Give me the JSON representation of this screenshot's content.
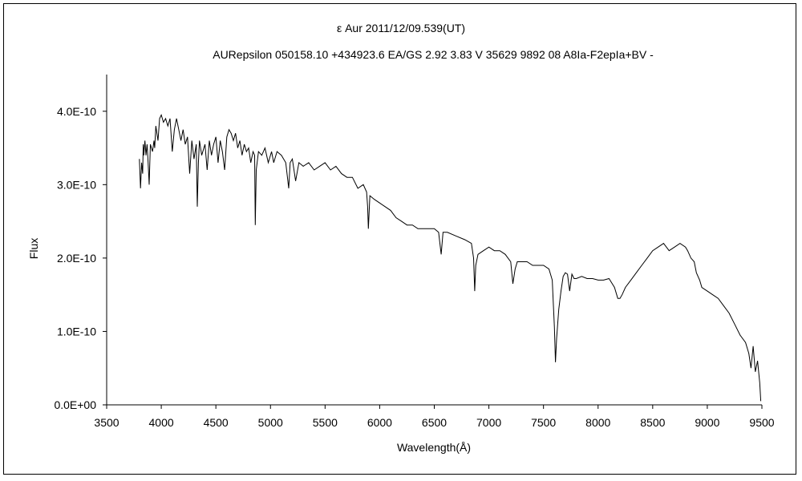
{
  "chart_data": {
    "type": "line",
    "title": "ε  Aur   2011/12/09.539(UT)",
    "subtitle": "AURepsilon 050158.10 +434923.6 EA/GS 2.92 3.83 V 35629 9892 08 A8Ia-F2epIa+BV -",
    "xlabel": "Wavelength(Å)",
    "ylabel": "Flux",
    "xlim": [
      3500,
      9500
    ],
    "ylim": [
      0,
      4.5e-10
    ],
    "xticks": [
      3500,
      4000,
      4500,
      5000,
      5500,
      6000,
      6500,
      7000,
      7500,
      8000,
      8500,
      9000,
      9500
    ],
    "xtick_labels": [
      "3500",
      "4000",
      "4500",
      "5000",
      "5500",
      "6000",
      "6500",
      "7000",
      "7500",
      "8000",
      "8500",
      "9000",
      "9500"
    ],
    "yticks": [
      0,
      1e-10,
      2e-10,
      3e-10,
      4e-10
    ],
    "ytick_labels": [
      "0.0E+00",
      "1.0E-10",
      "2.0E-10",
      "3.0E-10",
      "4.0E-10"
    ],
    "grid": false,
    "legend": "none",
    "line_color": "#000000",
    "series": [
      {
        "x": [
          3800,
          3810,
          3820,
          3830,
          3835,
          3840,
          3850,
          3860,
          3870,
          3880,
          3889,
          3900,
          3920,
          3933,
          3940,
          3950,
          3970,
          3985,
          4000,
          4020,
          4040,
          4060,
          4080,
          4101,
          4120,
          4140,
          4160,
          4180,
          4200,
          4220,
          4240,
          4260,
          4280,
          4300,
          4320,
          4330,
          4340,
          4350,
          4370,
          4400,
          4420,
          4440,
          4460,
          4480,
          4500,
          4520,
          4540,
          4560,
          4580,
          4600,
          4620,
          4640,
          4660,
          4680,
          4700,
          4720,
          4740,
          4760,
          4780,
          4800,
          4820,
          4840,
          4855,
          4861,
          4870,
          4890,
          4920,
          4950,
          4980,
          5010,
          5030,
          5060,
          5100,
          5140,
          5167,
          5180,
          5200,
          5230,
          5260,
          5300,
          5350,
          5400,
          5450,
          5500,
          5550,
          5600,
          5650,
          5700,
          5750,
          5800,
          5850,
          5880,
          5890,
          5896,
          5910,
          5950,
          6000,
          6050,
          6100,
          6150,
          6200,
          6250,
          6300,
          6350,
          6400,
          6450,
          6500,
          6540,
          6563,
          6580,
          6620,
          6700,
          6780,
          6840,
          6860,
          6870,
          6880,
          6900,
          6950,
          7000,
          7050,
          7100,
          7150,
          7200,
          7220,
          7240,
          7260,
          7300,
          7350,
          7400,
          7450,
          7500,
          7550,
          7580,
          7600,
          7610,
          7620,
          7640,
          7660,
          7680,
          7700,
          7720,
          7740,
          7760,
          7780,
          7800,
          7850,
          7900,
          7950,
          8000,
          8050,
          8100,
          8150,
          8180,
          8200,
          8220,
          8250,
          8300,
          8350,
          8400,
          8450,
          8500,
          8550,
          8600,
          8650,
          8700,
          8750,
          8800,
          8820,
          8850,
          8880,
          8900,
          8930,
          8950,
          9000,
          9050,
          9100,
          9150,
          9200,
          9250,
          9300,
          9350,
          9380,
          9400,
          9420,
          9440,
          9460,
          9480,
          9490
        ],
        "y": [
          3.35e-10,
          2.95e-10,
          3.3e-10,
          3.15e-10,
          3.55e-10,
          3.4e-10,
          3.6e-10,
          3.4e-10,
          3.55e-10,
          3.3e-10,
          3e-10,
          3.55e-10,
          3.45e-10,
          3.6e-10,
          3.5e-10,
          3.8e-10,
          3.6e-10,
          3.9e-10,
          3.95e-10,
          3.85e-10,
          3.9e-10,
          3.8e-10,
          3.9e-10,
          3.45e-10,
          3.75e-10,
          3.9e-10,
          3.75e-10,
          3.6e-10,
          3.75e-10,
          3.55e-10,
          3.65e-10,
          3.15e-10,
          3.6e-10,
          3.35e-10,
          3.55e-10,
          2.7e-10,
          3.3e-10,
          3.6e-10,
          3.4e-10,
          3.55e-10,
          3.2e-10,
          3.6e-10,
          3.4e-10,
          3.55e-10,
          3.65e-10,
          3.3e-10,
          3.6e-10,
          3.45e-10,
          3.2e-10,
          3.65e-10,
          3.75e-10,
          3.7e-10,
          3.6e-10,
          3.7e-10,
          3.5e-10,
          3.6e-10,
          3.4e-10,
          3.55e-10,
          3.45e-10,
          3.5e-10,
          3.3e-10,
          3.45e-10,
          3.4e-10,
          2.45e-10,
          3.2e-10,
          3.45e-10,
          3.4e-10,
          3.5e-10,
          3.3e-10,
          3.45e-10,
          3.3e-10,
          3.45e-10,
          3.4e-10,
          3.3e-10,
          2.95e-10,
          3.3e-10,
          3.35e-10,
          3.05e-10,
          3.3e-10,
          3.25e-10,
          3.3e-10,
          3.2e-10,
          3.25e-10,
          3.3e-10,
          3.2e-10,
          3.25e-10,
          3.15e-10,
          3.1e-10,
          3.1e-10,
          2.95e-10,
          3e-10,
          2.9e-10,
          2.7e-10,
          2.4e-10,
          2.85e-10,
          2.8e-10,
          2.75e-10,
          2.7e-10,
          2.65e-10,
          2.55e-10,
          2.5e-10,
          2.45e-10,
          2.45e-10,
          2.4e-10,
          2.4e-10,
          2.4e-10,
          2.4e-10,
          2.35e-10,
          2.05e-10,
          2.35e-10,
          2.35e-10,
          2.3e-10,
          2.25e-10,
          2.2e-10,
          2e-10,
          1.55e-10,
          1.9e-10,
          2.05e-10,
          2.1e-10,
          2.15e-10,
          2.1e-10,
          2.1e-10,
          2.05e-10,
          1.95e-10,
          1.65e-10,
          1.85e-10,
          1.95e-10,
          1.95e-10,
          1.95e-10,
          1.9e-10,
          1.9e-10,
          1.9e-10,
          1.85e-10,
          1.7e-10,
          1.05e-10,
          5.8e-11,
          9e-11,
          1.3e-10,
          1.55e-10,
          1.75e-10,
          1.8e-10,
          1.78e-10,
          1.55e-10,
          1.78e-10,
          1.72e-10,
          1.72e-10,
          1.75e-10,
          1.72e-10,
          1.72e-10,
          1.7e-10,
          1.7e-10,
          1.72e-10,
          1.6e-10,
          1.45e-10,
          1.45e-10,
          1.5e-10,
          1.6e-10,
          1.7e-10,
          1.8e-10,
          1.9e-10,
          2e-10,
          2.1e-10,
          2.15e-10,
          2.2e-10,
          2.1e-10,
          2.15e-10,
          2.2e-10,
          2.15e-10,
          2.1e-10,
          2e-10,
          1.95e-10,
          1.8e-10,
          1.7e-10,
          1.6e-10,
          1.55e-10,
          1.5e-10,
          1.45e-10,
          1.35e-10,
          1.25e-10,
          1.1e-10,
          9.5e-11,
          8.5e-11,
          7e-11,
          5e-11,
          8e-11,
          4.5e-11,
          6e-11,
          3e-11,
          5e-12
        ]
      }
    ]
  }
}
